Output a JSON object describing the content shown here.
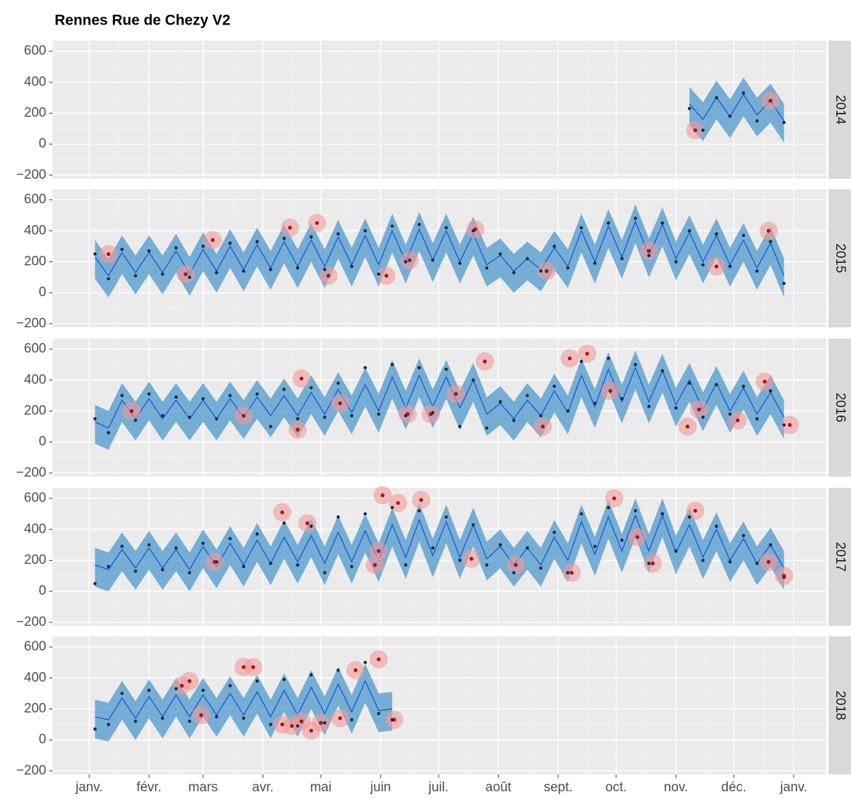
{
  "chart_data": {
    "type": "line",
    "title": "Rennes Rue de Chezy V2",
    "colors": {
      "observed": "#0d2d3e",
      "forecast": "#0b50d8",
      "band": "#4d98cc",
      "anomaly": "#e00000",
      "anomaly_halo": "#f29a9a"
    },
    "xlim": [
      -19,
      382
    ],
    "ylim": [
      -223,
      668
    ],
    "xticks": [
      {
        "value": 0,
        "label": "janv."
      },
      {
        "value": 31,
        "label": "févr."
      },
      {
        "value": 59,
        "label": "mars"
      },
      {
        "value": 90,
        "label": "avr."
      },
      {
        "value": 120,
        "label": "mai"
      },
      {
        "value": 151,
        "label": "juin"
      },
      {
        "value": 181,
        "label": "juil."
      },
      {
        "value": 212,
        "label": "août"
      },
      {
        "value": 243,
        "label": "sept."
      },
      {
        "value": 273,
        "label": "oct."
      },
      {
        "value": 304,
        "label": "nov."
      },
      {
        "value": 334,
        "label": "déc."
      },
      {
        "value": 365,
        "label": "janv."
      }
    ],
    "yticks": [
      {
        "value": -200,
        "label": "−200"
      },
      0,
      200,
      400,
      600
    ],
    "grid": true,
    "facets": [
      {
        "label": "2014",
        "x": [
          311,
          318,
          325,
          332,
          339,
          346,
          353,
          360
        ],
        "observed": [
          230,
          90,
          300,
          180,
          330,
          150,
          280,
          140
        ],
        "forecast": [
          260,
          160,
          300,
          180,
          320,
          190,
          280,
          150
        ],
        "lower": [
          120,
          20,
          160,
          40,
          180,
          50,
          140,
          10
        ],
        "upper": [
          370,
          270,
          410,
          290,
          430,
          300,
          390,
          260
        ],
        "anomaly_x": [
          314,
          353
        ],
        "anomaly_values": [
          90,
          280
        ]
      },
      {
        "label": "2015",
        "x": [
          3,
          10,
          17,
          24,
          31,
          38,
          45,
          52,
          59,
          66,
          73,
          80,
          87,
          94,
          101,
          108,
          115,
          122,
          129,
          136,
          143,
          150,
          157,
          164,
          171,
          178,
          185,
          192,
          199,
          206,
          213,
          220,
          227,
          234,
          241,
          248,
          255,
          262,
          269,
          276,
          283,
          290,
          297,
          304,
          311,
          318,
          325,
          332,
          339,
          346,
          353,
          360
        ],
        "observed": [
          250,
          90,
          280,
          110,
          270,
          120,
          290,
          100,
          300,
          130,
          320,
          140,
          330,
          150,
          350,
          160,
          360,
          150,
          380,
          170,
          400,
          120,
          430,
          200,
          440,
          210,
          420,
          190,
          400,
          160,
          250,
          130,
          220,
          140,
          300,
          160,
          420,
          190,
          450,
          220,
          480,
          240,
          450,
          200,
          400,
          180,
          380,
          170,
          370,
          140,
          330,
          60
        ],
        "forecast": [
          230,
          110,
          260,
          130,
          260,
          130,
          270,
          120,
          280,
          140,
          300,
          150,
          310,
          160,
          330,
          170,
          340,
          170,
          360,
          180,
          370,
          180,
          400,
          200,
          410,
          210,
          400,
          200,
          380,
          180,
          240,
          140,
          220,
          150,
          290,
          170,
          400,
          200,
          430,
          230,
          460,
          240,
          440,
          220,
          390,
          200,
          370,
          180,
          340,
          160,
          320,
          110
        ],
        "lower": [
          90,
          -30,
          120,
          -10,
          120,
          -10,
          130,
          -20,
          140,
          0,
          160,
          10,
          170,
          20,
          190,
          30,
          200,
          30,
          220,
          40,
          230,
          40,
          260,
          60,
          270,
          70,
          260,
          60,
          240,
          40,
          100,
          0,
          80,
          10,
          150,
          30,
          260,
          60,
          290,
          90,
          320,
          100,
          300,
          80,
          250,
          60,
          230,
          40,
          200,
          20,
          180,
          -30
        ],
        "upper": [
          340,
          220,
          370,
          240,
          370,
          240,
          380,
          230,
          390,
          250,
          410,
          260,
          420,
          270,
          440,
          280,
          450,
          280,
          470,
          290,
          480,
          290,
          510,
          310,
          520,
          320,
          510,
          310,
          490,
          290,
          350,
          250,
          330,
          260,
          400,
          280,
          510,
          310,
          540,
          340,
          570,
          350,
          550,
          330,
          500,
          310,
          480,
          290,
          450,
          270,
          430,
          220
        ],
        "anomaly_x": [
          10,
          50,
          64,
          104,
          118,
          124,
          154,
          166,
          200,
          237,
          290,
          325,
          352
        ],
        "anomaly_values": [
          250,
          120,
          340,
          420,
          450,
          110,
          110,
          210,
          410,
          140,
          270,
          170,
          400
        ]
      },
      {
        "label": "2016",
        "x": [
          3,
          10,
          17,
          24,
          31,
          38,
          45,
          52,
          59,
          66,
          73,
          80,
          87,
          94,
          101,
          108,
          115,
          122,
          129,
          136,
          143,
          150,
          157,
          164,
          171,
          178,
          185,
          192,
          199,
          206,
          213,
          220,
          227,
          234,
          241,
          248,
          255,
          262,
          269,
          276,
          283,
          290,
          297,
          304,
          311,
          318,
          325,
          332,
          339,
          346,
          353,
          360
        ],
        "observed": [
          150,
          60,
          300,
          140,
          310,
          170,
          290,
          160,
          280,
          150,
          300,
          170,
          310,
          100,
          340,
          150,
          350,
          160,
          380,
          170,
          480,
          180,
          500,
          170,
          480,
          190,
          470,
          100,
          400,
          90,
          260,
          140,
          300,
          170,
          360,
          200,
          520,
          250,
          540,
          280,
          500,
          230,
          460,
          220,
          380,
          160,
          370,
          180,
          360,
          150,
          330,
          110
        ],
        "forecast": [
          130,
          90,
          270,
          150,
          280,
          150,
          270,
          150,
          270,
          150,
          280,
          160,
          290,
          170,
          300,
          170,
          320,
          180,
          340,
          190,
          370,
          200,
          420,
          220,
          430,
          230,
          420,
          220,
          400,
          180,
          250,
          150,
          270,
          170,
          330,
          190,
          430,
          230,
          470,
          260,
          480,
          260,
          460,
          240,
          400,
          210,
          380,
          200,
          350,
          180,
          320,
          160
        ],
        "lower": [
          -10,
          -50,
          130,
          10,
          140,
          10,
          130,
          10,
          130,
          10,
          140,
          20,
          150,
          30,
          160,
          30,
          180,
          40,
          200,
          50,
          230,
          60,
          280,
          80,
          290,
          90,
          280,
          80,
          260,
          40,
          110,
          10,
          130,
          30,
          190,
          50,
          290,
          90,
          330,
          120,
          340,
          120,
          320,
          100,
          260,
          70,
          240,
          60,
          210,
          40,
          180,
          20
        ],
        "upper": [
          240,
          200,
          380,
          260,
          390,
          260,
          380,
          260,
          380,
          260,
          390,
          270,
          400,
          280,
          410,
          280,
          430,
          290,
          450,
          300,
          480,
          310,
          530,
          330,
          540,
          340,
          530,
          330,
          510,
          290,
          360,
          260,
          380,
          280,
          440,
          300,
          540,
          340,
          580,
          370,
          590,
          370,
          570,
          350,
          510,
          320,
          490,
          310,
          460,
          290,
          430,
          270
        ],
        "anomaly_x": [
          22,
          80,
          108,
          110,
          130,
          165,
          177,
          190,
          205,
          235,
          249,
          258,
          270,
          310,
          316,
          336,
          350,
          363
        ],
        "anomaly_values": [
          200,
          170,
          80,
          410,
          250,
          180,
          180,
          310,
          520,
          100,
          540,
          570,
          330,
          100,
          210,
          140,
          390,
          110
        ]
      },
      {
        "label": "2017",
        "x": [
          3,
          10,
          17,
          24,
          31,
          38,
          45,
          52,
          59,
          66,
          73,
          80,
          87,
          94,
          101,
          108,
          115,
          122,
          129,
          136,
          143,
          150,
          157,
          164,
          171,
          178,
          185,
          192,
          199,
          206,
          213,
          220,
          227,
          234,
          241,
          248,
          255,
          262,
          269,
          276,
          283,
          290,
          297,
          304,
          311,
          318,
          325,
          332,
          339,
          346,
          353,
          360
        ],
        "observed": [
          50,
          160,
          290,
          130,
          300,
          140,
          280,
          120,
          310,
          190,
          340,
          160,
          370,
          180,
          440,
          170,
          420,
          120,
          480,
          160,
          500,
          260,
          540,
          170,
          520,
          280,
          480,
          200,
          430,
          170,
          300,
          120,
          280,
          150,
          380,
          120,
          500,
          290,
          540,
          330,
          520,
          180,
          500,
          260,
          480,
          200,
          420,
          190,
          360,
          180,
          300,
          90
        ],
        "forecast": [
          170,
          140,
          270,
          150,
          280,
          150,
          270,
          140,
          290,
          160,
          310,
          170,
          330,
          180,
          350,
          190,
          360,
          180,
          380,
          190,
          390,
          200,
          430,
          220,
          460,
          230,
          450,
          220,
          430,
          210,
          290,
          170,
          280,
          170,
          350,
          200,
          450,
          240,
          480,
          260,
          490,
          260,
          490,
          250,
          430,
          220,
          400,
          200,
          340,
          180,
          300,
          150
        ],
        "lower": [
          30,
          0,
          130,
          10,
          140,
          10,
          130,
          0,
          150,
          20,
          170,
          30,
          190,
          40,
          210,
          50,
          220,
          40,
          240,
          50,
          250,
          60,
          290,
          80,
          320,
          90,
          310,
          80,
          290,
          70,
          150,
          30,
          140,
          30,
          210,
          60,
          310,
          100,
          340,
          120,
          350,
          120,
          350,
          110,
          290,
          80,
          260,
          60,
          200,
          40,
          160,
          10
        ],
        "upper": [
          280,
          250,
          380,
          260,
          390,
          260,
          380,
          250,
          400,
          270,
          420,
          280,
          440,
          290,
          460,
          300,
          470,
          290,
          490,
          300,
          500,
          310,
          540,
          330,
          570,
          340,
          560,
          330,
          540,
          320,
          400,
          280,
          390,
          280,
          460,
          310,
          560,
          350,
          590,
          370,
          600,
          370,
          600,
          360,
          540,
          330,
          510,
          310,
          450,
          290,
          410,
          260
        ],
        "anomaly_x": [
          65,
          100,
          113,
          148,
          150,
          152,
          160,
          172,
          198,
          221,
          250,
          272,
          284,
          292,
          314,
          352,
          360
        ],
        "anomaly_values": [
          190,
          510,
          440,
          170,
          260,
          620,
          570,
          590,
          210,
          170,
          120,
          600,
          350,
          180,
          520,
          190,
          100
        ]
      },
      {
        "label": "2018",
        "x": [
          3,
          10,
          17,
          24,
          31,
          38,
          45,
          52,
          59,
          66,
          73,
          80,
          87,
          94,
          101,
          108,
          115,
          122,
          129,
          136,
          143,
          150,
          157
        ],
        "observed": [
          70,
          100,
          300,
          120,
          320,
          140,
          330,
          120,
          320,
          150,
          350,
          140,
          380,
          100,
          390,
          90,
          420,
          110,
          450,
          130,
          500,
          170,
          130
        ],
        "forecast": [
          150,
          130,
          270,
          140,
          280,
          150,
          290,
          150,
          290,
          160,
          300,
          160,
          310,
          150,
          320,
          160,
          340,
          170,
          360,
          180,
          380,
          190,
          200
        ],
        "lower": [
          10,
          -10,
          130,
          0,
          140,
          10,
          150,
          10,
          150,
          20,
          160,
          20,
          170,
          10,
          180,
          20,
          200,
          30,
          220,
          40,
          240,
          50,
          60
        ],
        "upper": [
          260,
          240,
          380,
          250,
          390,
          260,
          400,
          260,
          400,
          270,
          410,
          270,
          420,
          260,
          430,
          270,
          450,
          280,
          470,
          290,
          490,
          300,
          310
        ],
        "anomaly_x": [
          48,
          52,
          58,
          80,
          85,
          100,
          105,
          110,
          115,
          120,
          130,
          138,
          150,
          158
        ],
        "anomaly_values": [
          350,
          380,
          160,
          470,
          470,
          100,
          90,
          120,
          60,
          110,
          140,
          450,
          520,
          130
        ]
      }
    ]
  }
}
